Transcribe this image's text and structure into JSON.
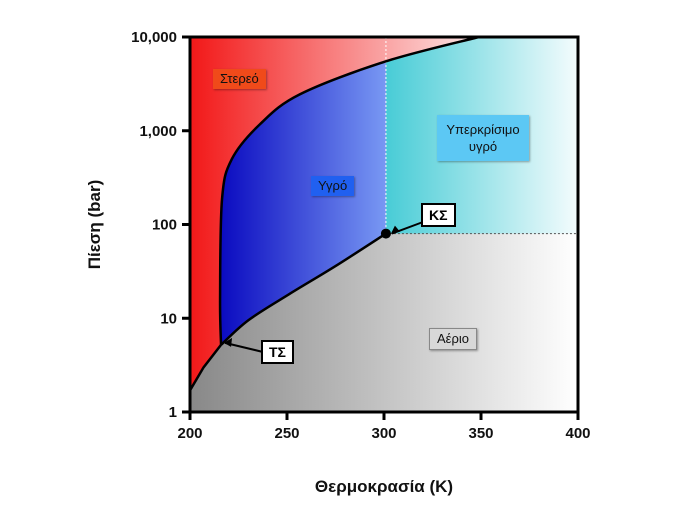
{
  "chart_data": {
    "type": "area",
    "title": "",
    "xlabel": "Θερμοκρασία (K)",
    "ylabel": "Πίεση (bar)",
    "xlim": [
      200,
      400
    ],
    "ylim": [
      1,
      10000
    ],
    "yscale": "log",
    "xticks": [
      200,
      250,
      300,
      350,
      400
    ],
    "xtick_labels": [
      "200",
      "250",
      "300",
      "350",
      "400"
    ],
    "yticks": [
      1,
      10,
      100,
      1000,
      10000
    ],
    "ytick_labels": [
      "1",
      "10",
      "100",
      "1,000",
      "10,000"
    ],
    "sublimation_curve": {
      "x": [
        200,
        207,
        216
      ],
      "y": [
        1.7,
        3,
        5.2
      ]
    },
    "vaporization_curve": {
      "x": [
        216,
        230,
        251,
        275,
        301
      ],
      "y": [
        5.2,
        9.5,
        18,
        36,
        80
      ]
    },
    "melting_curve": {
      "x": [
        216,
        215.5,
        216.5,
        221.6,
        236,
        256.7,
        301,
        349
      ],
      "y": [
        5.2,
        16,
        186,
        500,
        1170,
        2450,
        5500,
        10000
      ]
    },
    "critical_point": {
      "x": 301,
      "y": 80,
      "label": "ΚΣ"
    },
    "triple_point": {
      "x": 216,
      "y": 5.2,
      "label": "ΤΣ"
    },
    "regions": {
      "solid": "Στερεό",
      "liquid": "Υγρό",
      "supercritical": "Υπερκρίσιμο υγρό",
      "gas": "Αέριο"
    },
    "colors": {
      "solid": "#f42020",
      "liquid": "#1010c8",
      "supercritical": "#40c8d8",
      "gas": "#808080"
    }
  }
}
